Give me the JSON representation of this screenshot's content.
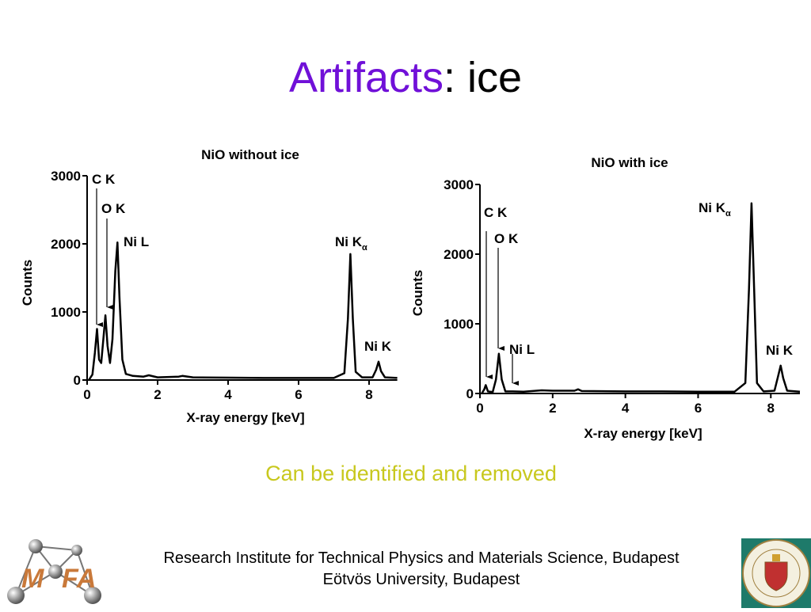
{
  "slide_title": {
    "highlight": "Artifacts",
    "rest": ": ice"
  },
  "chart_data": [
    {
      "type": "line",
      "title": "NiO without ice",
      "x_label": "X-ray energy [keV]",
      "y_label": "Counts",
      "color": "#000000",
      "x": [
        0.05,
        0.15,
        0.22,
        0.28,
        0.34,
        0.4,
        0.46,
        0.52,
        0.58,
        0.65,
        0.72,
        0.8,
        0.86,
        0.92,
        1.0,
        1.1,
        1.3,
        1.6,
        1.75,
        2.0,
        2.6,
        2.7,
        3.0,
        4.0,
        5.0,
        6.0,
        7.0,
        7.3,
        7.4,
        7.47,
        7.54,
        7.62,
        7.8,
        8.1,
        8.2,
        8.27,
        8.34,
        8.45,
        8.8
      ],
      "values": [
        0,
        80,
        400,
        750,
        300,
        250,
        600,
        950,
        500,
        250,
        600,
        1600,
        2020,
        1200,
        300,
        90,
        60,
        50,
        70,
        40,
        50,
        60,
        40,
        35,
        30,
        30,
        30,
        100,
        900,
        1850,
        900,
        120,
        40,
        40,
        150,
        270,
        130,
        40,
        30
      ],
      "xlim": [
        0,
        8.8
      ],
      "ylim": [
        0,
        3000
      ],
      "xticks": [
        0,
        2,
        4,
        6,
        8
      ],
      "yticks": [
        0,
        1000,
        2000,
        3000
      ],
      "annotations": [
        {
          "text": "C K"
        },
        {
          "text": "O K"
        },
        {
          "text": "Ni L"
        },
        {
          "text": "Ni K",
          "subscript": "α"
        },
        {
          "text": "Ni K"
        }
      ]
    },
    {
      "type": "line",
      "title": "NiO with ice",
      "x_label": "X-ray energy [keV]",
      "y_label": "Counts",
      "color": "#000000",
      "x": [
        0.05,
        0.12,
        0.16,
        0.22,
        0.35,
        0.44,
        0.52,
        0.6,
        0.7,
        0.9,
        1.2,
        1.7,
        2.0,
        2.6,
        2.7,
        2.8,
        4.0,
        5.0,
        6.0,
        7.0,
        7.3,
        7.4,
        7.47,
        7.54,
        7.62,
        7.8,
        8.1,
        8.2,
        8.27,
        8.34,
        8.45,
        8.8
      ],
      "values": [
        0,
        60,
        120,
        30,
        20,
        200,
        570,
        200,
        30,
        30,
        25,
        45,
        40,
        40,
        60,
        35,
        30,
        30,
        25,
        25,
        150,
        1500,
        2730,
        1500,
        150,
        30,
        40,
        250,
        400,
        220,
        40,
        25
      ],
      "xlim": [
        0,
        8.8
      ],
      "ylim": [
        0,
        3000
      ],
      "xticks": [
        0,
        2,
        4,
        6,
        8
      ],
      "yticks": [
        0,
        1000,
        2000,
        3000
      ],
      "annotations": [
        {
          "text": "C K"
        },
        {
          "text": "O K"
        },
        {
          "text": "Ni L"
        },
        {
          "text": "Ni K",
          "subscript": "α"
        },
        {
          "text": "Ni K"
        }
      ]
    }
  ],
  "note": "Can be identified and removed",
  "footer": {
    "line1": "Research Institute for Technical Physics and Materials Science, Budapest",
    "line2": "Eötvös University, Budapest"
  },
  "logo": {
    "letters": [
      "M",
      "FA"
    ]
  }
}
